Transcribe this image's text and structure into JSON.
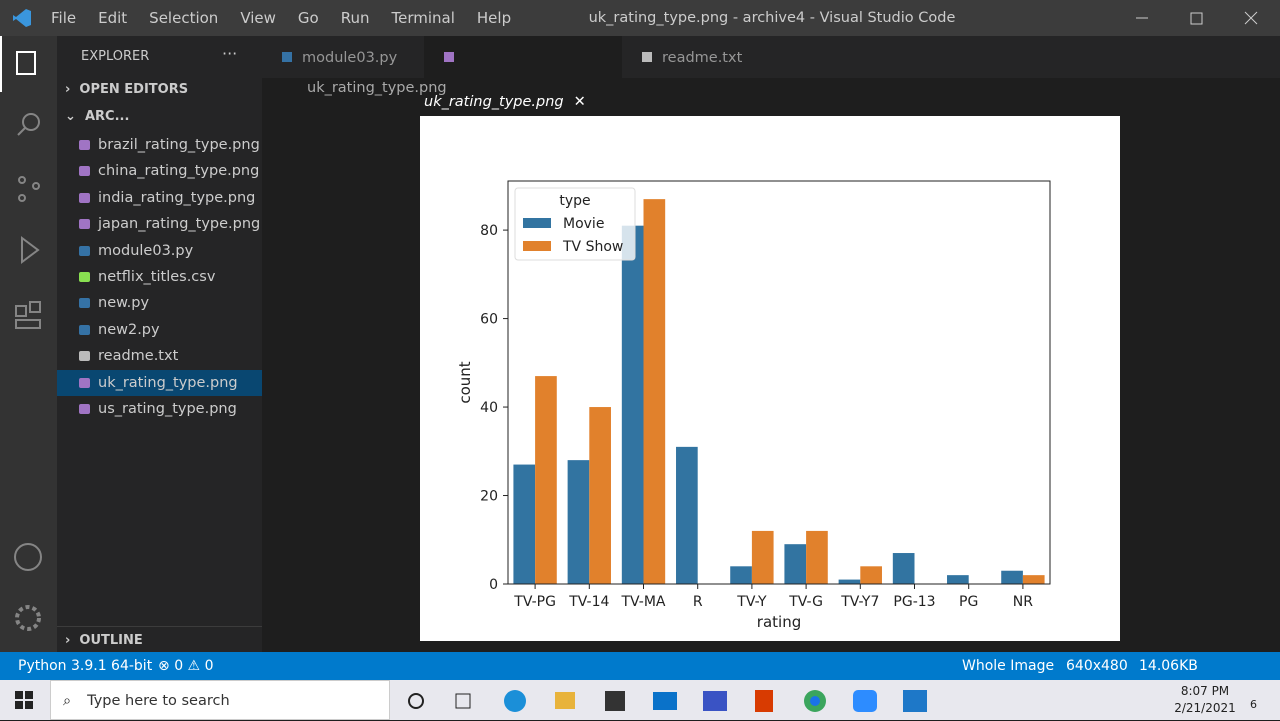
{
  "window": {
    "menu": [
      "File",
      "Edit",
      "Selection",
      "View",
      "Go",
      "Run",
      "Terminal",
      "Help"
    ],
    "title": "uk_rating_type.png - archive4 - Visual Studio Code"
  },
  "sidebar": {
    "header": "EXPLORER",
    "open_editors": "OPEN EDITORS",
    "folder": "ARC...",
    "files": [
      "brazil_rating_type.png",
      "china_rating_type.png",
      "india_rating_type.png",
      "japan_rating_type.png",
      "module03.py",
      "netflix_titles.csv",
      "new.py",
      "new2.py",
      "readme.txt",
      "uk_rating_type.png",
      "us_rating_type.png"
    ],
    "outline": "OUTLINE"
  },
  "tabs": [
    "module03.py",
    "uk_rating_type.png",
    "readme.txt"
  ],
  "breadcrumb": "uk_rating_type.png",
  "chart_data": {
    "type": "bar",
    "x_label": "rating",
    "y_label": "count",
    "legend_title": "type",
    "legend": "upper left",
    "categories": [
      "TV-PG",
      "TV-14",
      "TV-MA",
      "R",
      "TV-Y",
      "TV-G",
      "TV-Y7",
      "PG-13",
      "PG",
      "NR"
    ],
    "series": [
      {
        "name": "Movie",
        "color": "#3274a1",
        "values": [
          27,
          28,
          81,
          31,
          4,
          9,
          1,
          7,
          2,
          3
        ]
      },
      {
        "name": "TV Show",
        "color": "#e1812c",
        "values": [
          47,
          40,
          87,
          null,
          12,
          12,
          4,
          null,
          null,
          2
        ]
      }
    ],
    "ylim": [
      0,
      91.1
    ],
    "yticks": [
      0,
      20,
      40,
      60,
      80
    ]
  },
  "status_bar": {
    "interpreter": "Python 3.9.1 64-bit",
    "errors": "0",
    "warnings": "0",
    "zoom": "Whole Image",
    "dimensions": "640x480",
    "size": "14.06KB"
  },
  "taskbar": {
    "search": "Type here to search",
    "time": "8:07 PM",
    "date": "2/21/2021",
    "notifications": "6"
  }
}
